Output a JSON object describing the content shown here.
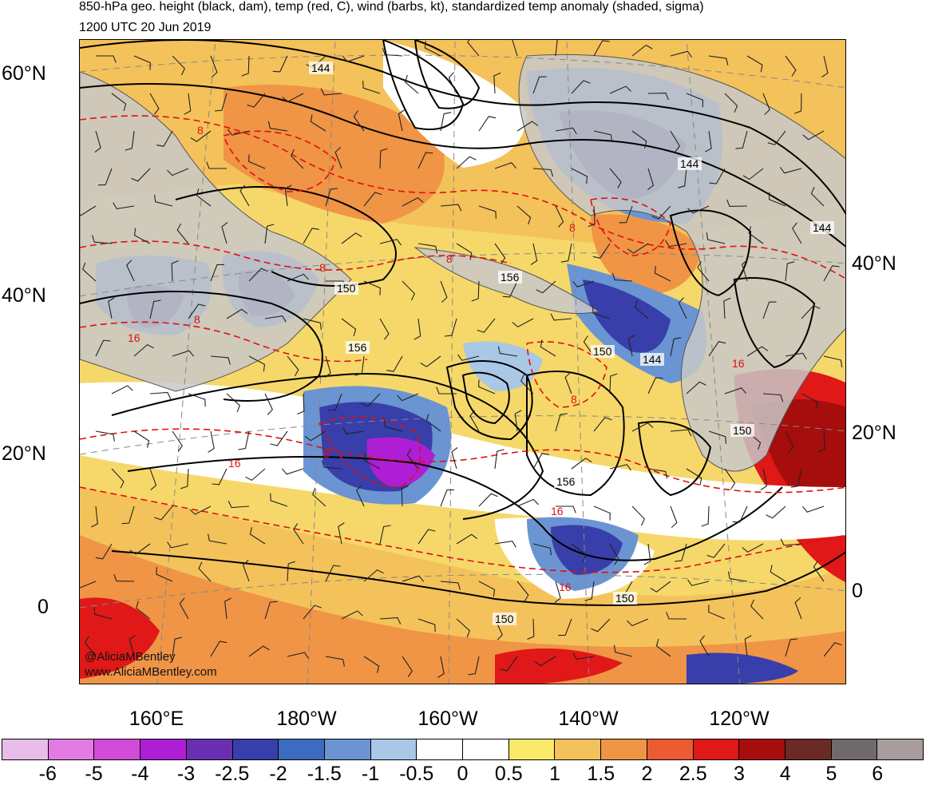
{
  "title": "850-hPa geo. height (black, dam), temp (red, C), wind (barbs, kt), standardized temp anomaly (shaded, sigma)",
  "subtitle": "1200 UTC 20 Jun 2019",
  "lat_labels_left": [
    "60°N",
    "40°N",
    "20°N",
    "0"
  ],
  "lat_labels_right": [
    "40°N",
    "20°N",
    "0"
  ],
  "lon_labels": [
    "160°E",
    "180°W",
    "160°W",
    "140°W",
    "120°W"
  ],
  "contour_labels": {
    "height": [
      "144",
      "144",
      "144",
      "150",
      "156",
      "156",
      "150",
      "144",
      "156",
      "150",
      "150",
      "150"
    ],
    "temperature": [
      "8",
      "8",
      "8",
      "8",
      "8",
      "16",
      "8",
      "16",
      "16",
      "16",
      "8",
      "16"
    ]
  },
  "credits": [
    "@AliciaMBentley",
    "www.AliciaMBentley.com"
  ],
  "colorbar": {
    "labels": [
      "-6",
      "-5",
      "-4",
      "-3",
      "-2.5",
      "-2",
      "-1.5",
      "-1",
      "-0.5",
      "0",
      "0.5",
      "1",
      "1.5",
      "2",
      "2.5",
      "3",
      "4",
      "5",
      "6"
    ],
    "colors": [
      "#e9bce9",
      "#e17be1",
      "#d24bd8",
      "#ae1ed4",
      "#6a2fb0",
      "#383eaa",
      "#3c6cc0",
      "#6b94d2",
      "#a8c8e6",
      "#ffffff",
      "#ffffff",
      "#fbea6a",
      "#f4c25a",
      "#f09446",
      "#ec5a32",
      "#e01818",
      "#a60d0d",
      "#6c2a26",
      "#716a6a",
      "#a89c9c"
    ]
  },
  "anomaly_colors": {
    "land": "#c8c8c8",
    "cold_strong": "#383eaa",
    "cold_core": "#ae1ed4",
    "cold_mid": "#6b94d2",
    "cold_weak": "#a8c8e6",
    "warm_weak": "#fbea6a",
    "warm_mid": "#f4c25a",
    "warm_strong": "#f09446",
    "hot": "#e01818",
    "hot_strong": "#a60d0d"
  }
}
